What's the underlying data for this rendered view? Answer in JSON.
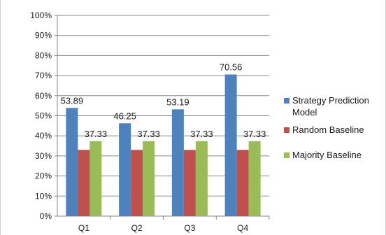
{
  "colors": {
    "strategy": "#4f81bd",
    "random": "#c0504d",
    "majority": "#9bbb59",
    "gridline": "#878787",
    "axis": "#878787"
  },
  "chart_data": {
    "type": "bar",
    "categories": [
      "Q1",
      "Q2",
      "Q3",
      "Q4"
    ],
    "ylim": [
      0,
      100
    ],
    "yticks": [
      "0%",
      "10%",
      "20%",
      "30%",
      "40%",
      "50%",
      "60%",
      "70%",
      "80%",
      "90%",
      "100%"
    ],
    "grid": true,
    "legend_position": "right",
    "series": [
      {
        "name": "Strategy Prediction Model",
        "legend_lines": [
          "Strategy Prediction",
          "Model"
        ],
        "values": [
          53.89,
          46.25,
          53.19,
          70.56
        ],
        "labels": [
          "53.89",
          "46.25",
          "53.19",
          "70.56"
        ],
        "color_key": "strategy"
      },
      {
        "name": "Random Baseline",
        "legend_lines": [
          "Random Baseline"
        ],
        "values": [
          33,
          33,
          33,
          33
        ],
        "labels": [
          "",
          "",
          "",
          ""
        ],
        "color_key": "random"
      },
      {
        "name": "Majority Baseline",
        "legend_lines": [
          "Majority Baseline"
        ],
        "values": [
          37.33,
          37.33,
          37.33,
          37.33
        ],
        "labels": [
          "37.33",
          "37.33",
          "37.33",
          "37.33"
        ],
        "color_key": "majority"
      }
    ]
  }
}
